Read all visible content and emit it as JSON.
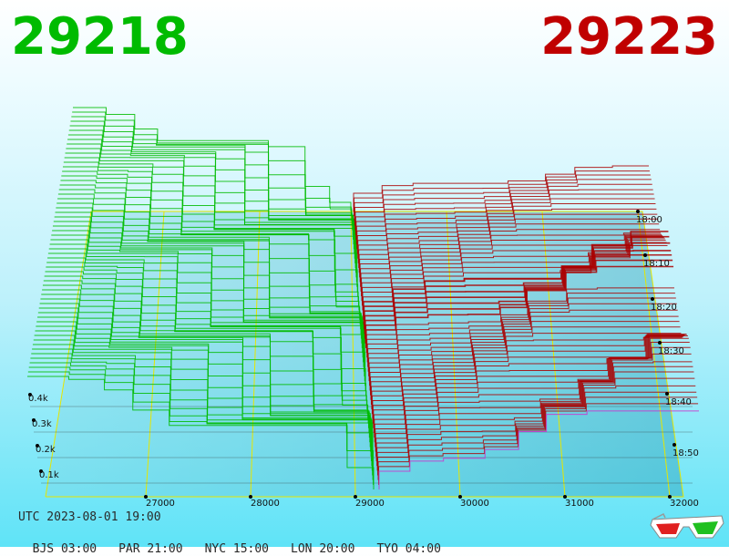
{
  "header": {
    "bid": "29218",
    "ask": "29223",
    "bid_color": "#00bb00",
    "ask_color": "#c00000"
  },
  "footer": {
    "utc": "UTC 2023-08-01 19:00",
    "zones": [
      "BJS 03:00",
      "PAR 21:00",
      "NYC 15:00",
      "LON 20:00",
      "TYO 04:00"
    ]
  },
  "icons": {
    "glasses": "3d-glasses-icon"
  },
  "chart_data": {
    "type": "area",
    "x_ticks": [
      "27000",
      "28000",
      "29000",
      "30000",
      "31000",
      "32000"
    ],
    "y_ticks": [
      "0.1k",
      "0.2k",
      "0.3k",
      "0.4k"
    ],
    "time_ticks": [
      "18:00",
      "18:10",
      "18:20",
      "18:30",
      "18:40",
      "18:50"
    ],
    "bid_color": "#00bb00",
    "ask_color": "#aa0000",
    "grid_color": "#e6e600"
  }
}
